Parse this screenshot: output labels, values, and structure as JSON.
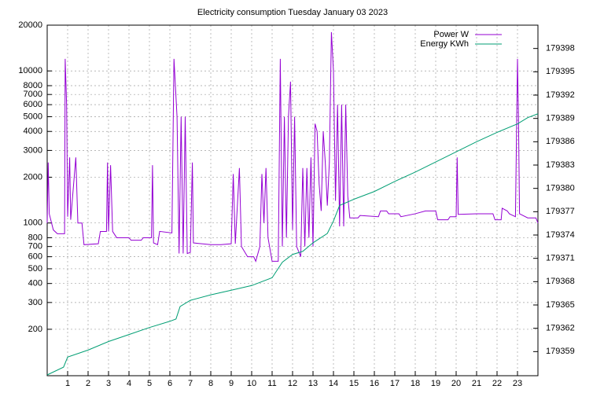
{
  "chart_data": {
    "type": "line",
    "title": "Electricity consumption Tuesday January 03 2023",
    "log_y": true,
    "grid": true,
    "legend": "top right",
    "xlim": [
      0,
      24
    ],
    "xticks": [
      1,
      2,
      3,
      4,
      5,
      6,
      7,
      8,
      9,
      10,
      11,
      12,
      13,
      14,
      15,
      16,
      17,
      18,
      19,
      20,
      21,
      22,
      23
    ],
    "ylim": [
      99,
      20000
    ],
    "yticks": [
      200,
      300,
      400,
      500,
      600,
      700,
      800,
      1000,
      2000,
      3000,
      4000,
      5000,
      6000,
      7000,
      8000,
      10000,
      20000
    ],
    "y2lim": [
      179355.9,
      179401
    ],
    "y2ticks": [
      179359,
      179362,
      179365,
      179368,
      179371,
      179374,
      179377,
      179380,
      179383,
      179386,
      179389,
      179392,
      179395,
      179398
    ],
    "series": [
      {
        "name": "Power W",
        "color": "#9400d3",
        "x": [
          0,
          0.05,
          0.1,
          0.3,
          0.5,
          0.85,
          0.88,
          0.95,
          1.0,
          1.1,
          1.15,
          1.4,
          1.5,
          1.7,
          1.8,
          2.5,
          2.6,
          2.9,
          2.95,
          3.0,
          3.1,
          3.2,
          3.4,
          4.0,
          4.1,
          4.6,
          4.7,
          5.1,
          5.15,
          5.2,
          5.4,
          5.5,
          6.1,
          6.2,
          6.35,
          6.45,
          6.55,
          6.65,
          6.75,
          6.85,
          7.0,
          7.1,
          7.15,
          8.0,
          8.5,
          9.0,
          9.1,
          9.2,
          9.4,
          9.5,
          9.8,
          10.1,
          10.2,
          10.4,
          10.5,
          10.6,
          10.7,
          10.8,
          11.0,
          11.3,
          11.4,
          11.5,
          11.6,
          11.7,
          11.8,
          11.9,
          12.0,
          12.1,
          12.2,
          12.4,
          12.5,
          12.6,
          12.7,
          12.8,
          12.9,
          13.0,
          13.1,
          13.2,
          13.3,
          13.4,
          13.5,
          13.6,
          13.7,
          13.8,
          13.9,
          14.0,
          14.1,
          14.2,
          14.3,
          14.4,
          14.5,
          14.6,
          14.7,
          14.8,
          15.2,
          15.3,
          16.2,
          16.3,
          16.6,
          16.7,
          17.2,
          17.3,
          18.0,
          18.5,
          19.0,
          19.1,
          19.6,
          19.7,
          20.0,
          20.05,
          20.1,
          21.0,
          21.8,
          21.9,
          22.2,
          22.25,
          22.5,
          22.6,
          22.9,
          23.0,
          23.05,
          23.1,
          23.5,
          23.9,
          24
        ],
        "values": [
          1000,
          2500,
          1150,
          900,
          850,
          850,
          12000,
          6000,
          1100,
          2700,
          1050,
          2700,
          1000,
          1000,
          720,
          730,
          880,
          880,
          2500,
          880,
          2400,
          880,
          800,
          800,
          770,
          770,
          800,
          800,
          2400,
          740,
          720,
          880,
          860,
          12000,
          5000,
          630,
          5000,
          630,
          5000,
          630,
          640,
          2500,
          740,
          720,
          720,
          730,
          2100,
          730,
          2300,
          700,
          600,
          600,
          560,
          700,
          2100,
          1000,
          2300,
          800,
          560,
          560,
          12000,
          700,
          5000,
          800,
          5000,
          8500,
          900,
          5000,
          700,
          600,
          2300,
          700,
          2300,
          800,
          2700,
          700,
          4500,
          4000,
          1800,
          1200,
          4000,
          2500,
          1300,
          2500,
          18000,
          10000,
          1400,
          6000,
          950,
          6000,
          950,
          6000,
          1500,
          1080,
          1080,
          1120,
          1100,
          1200,
          1200,
          1150,
          1150,
          1100,
          1150,
          1200,
          1200,
          1050,
          1050,
          1100,
          1100,
          2700,
          1140,
          1150,
          1150,
          1050,
          1050,
          1250,
          1200,
          1150,
          1100,
          12000,
          4800,
          1150,
          1080,
          1080,
          1000
        ]
      },
      {
        "name": "Energy KWh",
        "color": "#009e73",
        "axis": "y2",
        "x": [
          0,
          0.8,
          1.0,
          2,
          3,
          4,
          5,
          6,
          6.3,
          6.5,
          7,
          8,
          9,
          10,
          11,
          11.5,
          12,
          12.5,
          13,
          13.7,
          14.0,
          14.3,
          15,
          16,
          17,
          18,
          19,
          20,
          21,
          22,
          23,
          23.5,
          24
        ],
        "values": [
          179356,
          179357,
          179358.3,
          179359.2,
          179360.3,
          179361.2,
          179362.1,
          179362.9,
          179363.2,
          179364.8,
          179365.6,
          179366.3,
          179366.9,
          179367.5,
          179368.5,
          179370.5,
          179371.5,
          179371.9,
          179373,
          179374.2,
          179375.8,
          179377.8,
          179378.6,
          179379.6,
          179380.9,
          179382.1,
          179383.4,
          179384.7,
          179386.0,
          179387.2,
          179388.3,
          179389.1,
          179389.6
        ]
      }
    ]
  }
}
